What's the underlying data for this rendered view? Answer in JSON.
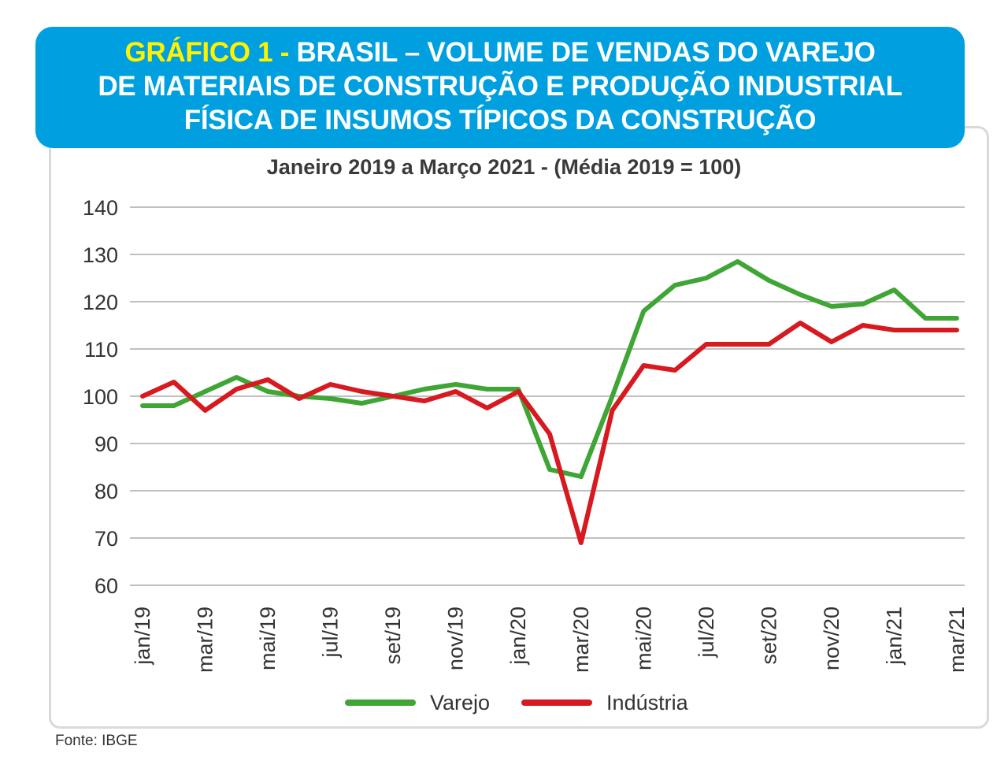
{
  "header": {
    "label": "GRÁFICO 1 -",
    "line1": "BRASIL – VOLUME DE VENDAS DO VAREJO",
    "line2": "DE MATERIAIS DE CONSTRUÇÃO E PRODUÇÃO INDUSTRIAL",
    "line3": "FÍSICA DE INSUMOS TÍPICOS DA CONSTRUÇÃO"
  },
  "source": "Fonte: IBGE",
  "colors": {
    "banner": "#00a0e0",
    "highlight": "#fff200",
    "varejo": "#3fa535",
    "industria": "#d71920"
  },
  "chart_data": {
    "type": "line",
    "title": "Janeiro 2019 a Março 2021  - (Média 2019 = 100)",
    "ylim": [
      60,
      140
    ],
    "yticks": [
      60,
      70,
      80,
      90,
      100,
      110,
      120,
      130,
      140
    ],
    "grid": true,
    "legend_position": "bottom",
    "x": [
      "jan/19",
      "fev/19",
      "mar/19",
      "abr/19",
      "mai/19",
      "jun/19",
      "jul/19",
      "ago/19",
      "set/19",
      "out/19",
      "nov/19",
      "dez/19",
      "jan/20",
      "fev/20",
      "mar/20",
      "abr/20",
      "mai/20",
      "jun/20",
      "jul/20",
      "ago/20",
      "set/20",
      "out/20",
      "nov/20",
      "dez/20",
      "jan/21",
      "fev/21",
      "mar/21"
    ],
    "xtick_labels": [
      "jan/19",
      "mar/19",
      "mai/19",
      "jul/19",
      "set/19",
      "nov/19",
      "jan/20",
      "mar/20",
      "mai/20",
      "jul/20",
      "set/20",
      "nov/20",
      "jan/21",
      "mar/21"
    ],
    "series": [
      {
        "name": "Varejo",
        "color": "#3fa535",
        "values": [
          98,
          98,
          101,
          104,
          101,
          100,
          99.5,
          98.5,
          100,
          101.5,
          102.5,
          101.5,
          101.5,
          84.5,
          83,
          100,
          118,
          123.5,
          125,
          128.5,
          124.5,
          121.5,
          119,
          119.5,
          122.5,
          116.5,
          116.5
        ]
      },
      {
        "name": "Indústria",
        "color": "#d71920",
        "values": [
          100,
          103,
          97,
          101.5,
          103.5,
          99.5,
          102.5,
          101,
          100,
          99,
          101,
          97.5,
          101,
          92,
          69,
          97,
          106.5,
          105.5,
          111,
          111,
          111,
          115.5,
          111.5,
          115,
          114,
          114,
          114
        ]
      }
    ]
  }
}
